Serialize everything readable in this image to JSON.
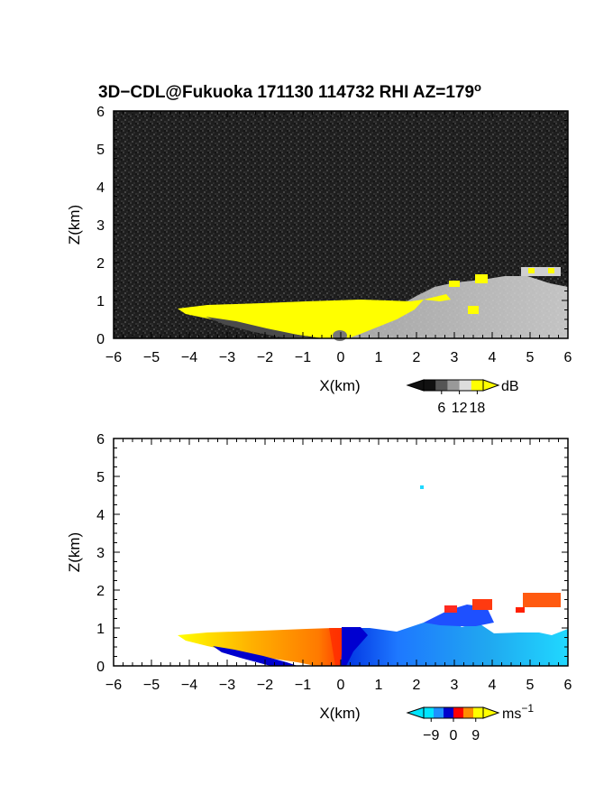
{
  "title": {
    "main": "3D−CDL@Fukuoka 171130 114732 RHI AZ=179",
    "degree_symbol": "o"
  },
  "chart_data": [
    {
      "type": "heatmap",
      "quantity": "reflectivity / SNR",
      "xlabel": "X(km)",
      "ylabel": "Z(km)",
      "xlim": [
        -6,
        6
      ],
      "ylim": [
        0,
        6
      ],
      "xticks": [
        "−6",
        "−5",
        "−4",
        "−3",
        "−2",
        "−1",
        "0",
        "1",
        "2",
        "3",
        "4",
        "5",
        "6"
      ],
      "yticks": [
        "0",
        "1",
        "2",
        "3",
        "4",
        "5",
        "6"
      ],
      "colorbar": {
        "unit": "dB",
        "ticks": [
          "6",
          "12",
          "18"
        ],
        "tick_values": [
          6,
          12,
          18
        ],
        "range": [
          0,
          20
        ],
        "colors": [
          "#111111",
          "#555555",
          "#999999",
          "#dddddd",
          "#ffff00"
        ]
      },
      "saturated_color": "#ffff00",
      "features": [
        {
          "name": "saturated lower layer",
          "x_range": [
            -4.3,
            1.5
          ],
          "z_range": [
            0,
            0.95
          ]
        },
        {
          "name": "echo layer",
          "x_range": [
            1.5,
            6.0
          ],
          "z_range": [
            0,
            1.4
          ]
        },
        {
          "name": "elevated echo patches",
          "x_range": [
            2.7,
            5.9
          ],
          "z_range": [
            1.4,
            1.9
          ]
        }
      ]
    },
    {
      "type": "heatmap",
      "quantity": "Doppler velocity",
      "xlabel": "X(km)",
      "ylabel": "Z(km)",
      "xlim": [
        -6,
        6
      ],
      "ylim": [
        0,
        6
      ],
      "xticks": [
        "−6",
        "−5",
        "−4",
        "−3",
        "−2",
        "−1",
        "0",
        "1",
        "2",
        "3",
        "4",
        "5",
        "6"
      ],
      "yticks": [
        "0",
        "1",
        "2",
        "3",
        "4",
        "5",
        "6"
      ],
      "colorbar": {
        "unit": "ms",
        "unit_exponent": "−1",
        "ticks": [
          "−9",
          "0",
          "9"
        ],
        "tick_values": [
          -9,
          0,
          9
        ],
        "range": [
          -12,
          12
        ],
        "colors": [
          "#00e5ff",
          "#1e90ff",
          "#0000cd",
          "#ff0000",
          "#ff8c00",
          "#ffff00"
        ]
      },
      "features": [
        {
          "name": "positive velocity sector",
          "x_range": [
            -4.3,
            0.0
          ],
          "z_range": [
            0,
            0.85
          ],
          "sign": "+"
        },
        {
          "name": "negative velocity sector",
          "x_range": [
            0.0,
            6.0
          ],
          "z_range": [
            0,
            1.1
          ],
          "sign": "−"
        },
        {
          "name": "elevated positive patches",
          "x_range": [
            2.9,
            5.9
          ],
          "z_range": [
            1.4,
            1.9
          ],
          "sign": "+"
        }
      ]
    }
  ]
}
